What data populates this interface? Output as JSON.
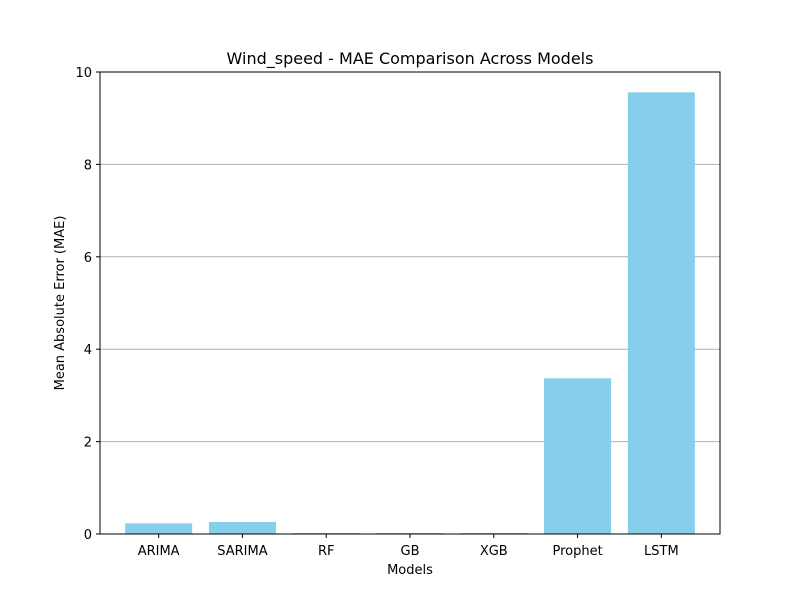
{
  "chart_data": {
    "type": "bar",
    "title": "Wind_speed - MAE Comparison Across Models",
    "xlabel": "Models",
    "ylabel": "Mean Absolute Error (MAE)",
    "categories": [
      "ARIMA",
      "SARIMA",
      "RF",
      "GB",
      "XGB",
      "Prophet",
      "LSTM"
    ],
    "values": [
      0.23,
      0.26,
      0.02,
      0.02,
      0.02,
      3.37,
      9.56
    ],
    "ylim": [
      0,
      10
    ],
    "yticks": [
      "0",
      "2",
      "4",
      "6",
      "8",
      "10"
    ],
    "grid": "horizontal",
    "legend": "none",
    "bar_color": "#87ceeb"
  }
}
